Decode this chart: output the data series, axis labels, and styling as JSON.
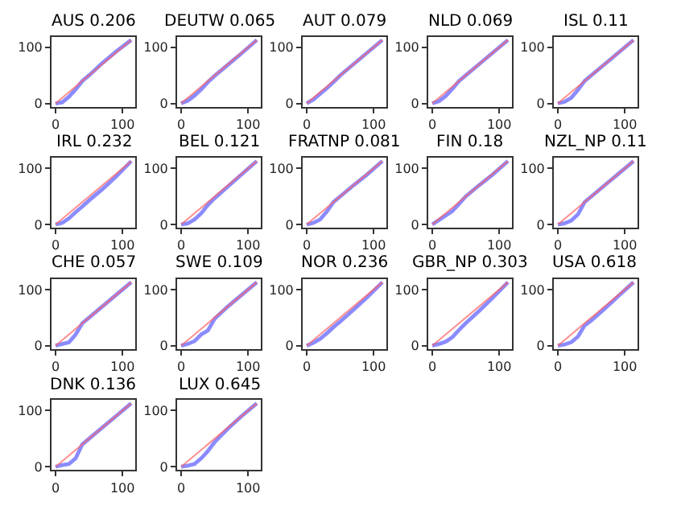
{
  "chart_data": [
    {
      "type": "line",
      "title": "AUS 0.206",
      "xlim": [
        -6,
        119
      ],
      "ylim": [
        -6,
        119
      ],
      "xticks": [
        0,
        100
      ],
      "yticks": [
        0,
        100
      ],
      "series": [
        {
          "color": "#5a5aff",
          "x": [
            0,
            10,
            20,
            30,
            40,
            50,
            70,
            90,
            113
          ],
          "values": [
            0,
            2,
            12,
            25,
            40,
            50,
            72,
            92,
            113
          ]
        },
        {
          "color": "#ff6060",
          "x": [
            0,
            113
          ],
          "values": [
            0,
            113
          ]
        }
      ]
    },
    {
      "type": "line",
      "title": "DEUTW 0.065",
      "xlim": [
        -6,
        119
      ],
      "ylim": [
        -6,
        119
      ],
      "xticks": [
        0,
        100
      ],
      "yticks": [
        0,
        100
      ],
      "series": [
        {
          "color": "#5a5aff",
          "x": [
            0,
            10,
            20,
            30,
            40,
            50,
            70,
            90,
            113
          ],
          "values": [
            0,
            5,
            14,
            25,
            38,
            49,
            69,
            89,
            113
          ]
        },
        {
          "color": "#ff6060",
          "x": [
            0,
            113
          ],
          "values": [
            0,
            113
          ]
        }
      ]
    },
    {
      "type": "line",
      "title": "AUT 0.079",
      "xlim": [
        -6,
        119
      ],
      "ylim": [
        -6,
        119
      ],
      "xticks": [
        0,
        100
      ],
      "yticks": [
        0,
        100
      ],
      "series": [
        {
          "color": "#5a5aff",
          "x": [
            0,
            10,
            20,
            30,
            40,
            50,
            70,
            90,
            113
          ],
          "values": [
            0,
            7,
            17,
            27,
            38,
            50,
            70,
            90,
            113
          ]
        },
        {
          "color": "#ff6060",
          "x": [
            0,
            113
          ],
          "values": [
            0,
            113
          ]
        }
      ]
    },
    {
      "type": "line",
      "title": "NLD 0.069",
      "xlim": [
        -6,
        119
      ],
      "ylim": [
        -6,
        119
      ],
      "xticks": [
        0,
        100
      ],
      "yticks": [
        0,
        100
      ],
      "series": [
        {
          "color": "#5a5aff",
          "x": [
            0,
            10,
            20,
            30,
            40,
            50,
            70,
            90,
            113
          ],
          "values": [
            0,
            4,
            13,
            26,
            40,
            50,
            70,
            90,
            113
          ]
        },
        {
          "color": "#ff6060",
          "x": [
            0,
            113
          ],
          "values": [
            0,
            113
          ]
        }
      ]
    },
    {
      "type": "line",
      "title": "ISL 0.11",
      "xlim": [
        -6,
        119
      ],
      "ylim": [
        -6,
        119
      ],
      "xticks": [
        0,
        100
      ],
      "yticks": [
        0,
        100
      ],
      "series": [
        {
          "color": "#5a5aff",
          "x": [
            0,
            10,
            20,
            30,
            40,
            50,
            70,
            90,
            113
          ],
          "values": [
            0,
            3,
            10,
            24,
            40,
            50,
            70,
            90,
            113
          ]
        },
        {
          "color": "#ff6060",
          "x": [
            0,
            113
          ],
          "values": [
            0,
            113
          ]
        }
      ]
    },
    {
      "type": "line",
      "title": "IRL 0.232",
      "xlim": [
        -6,
        119
      ],
      "ylim": [
        -6,
        119
      ],
      "xticks": [
        0,
        100
      ],
      "yticks": [
        0,
        100
      ],
      "series": [
        {
          "color": "#5a5aff",
          "x": [
            0,
            10,
            20,
            30,
            40,
            50,
            70,
            90,
            113
          ],
          "values": [
            0,
            3,
            11,
            22,
            32,
            43,
            63,
            85,
            113
          ]
        },
        {
          "color": "#ff6060",
          "x": [
            0,
            113
          ],
          "values": [
            0,
            113
          ]
        }
      ]
    },
    {
      "type": "line",
      "title": "BEL 0.121",
      "xlim": [
        -6,
        119
      ],
      "ylim": [
        -6,
        119
      ],
      "xticks": [
        0,
        100
      ],
      "yticks": [
        0,
        100
      ],
      "series": [
        {
          "color": "#5a5aff",
          "x": [
            0,
            10,
            20,
            30,
            40,
            50,
            70,
            90,
            113
          ],
          "values": [
            0,
            2,
            9,
            20,
            35,
            47,
            68,
            89,
            113
          ]
        },
        {
          "color": "#ff6060",
          "x": [
            0,
            113
          ],
          "values": [
            0,
            113
          ]
        }
      ]
    },
    {
      "type": "line",
      "title": "FRATNP 0.081",
      "xlim": [
        -6,
        119
      ],
      "ylim": [
        -6,
        119
      ],
      "xticks": [
        0,
        100
      ],
      "yticks": [
        0,
        100
      ],
      "series": [
        {
          "color": "#5a5aff",
          "x": [
            0,
            10,
            20,
            30,
            40,
            50,
            70,
            90,
            113
          ],
          "values": [
            0,
            3,
            9,
            23,
            40,
            50,
            70,
            89,
            113
          ]
        },
        {
          "color": "#ff6060",
          "x": [
            0,
            113
          ],
          "values": [
            0,
            113
          ]
        }
      ]
    },
    {
      "type": "line",
      "title": "FIN 0.18",
      "xlim": [
        -6,
        119
      ],
      "ylim": [
        -6,
        119
      ],
      "xticks": [
        0,
        100
      ],
      "yticks": [
        0,
        100
      ],
      "series": [
        {
          "color": "#5a5aff",
          "x": [
            0,
            10,
            20,
            30,
            40,
            50,
            70,
            90,
            113
          ],
          "values": [
            0,
            8,
            16,
            24,
            37,
            50,
            70,
            89,
            113
          ]
        },
        {
          "color": "#ff6060",
          "x": [
            0,
            113
          ],
          "values": [
            0,
            113
          ]
        }
      ]
    },
    {
      "type": "line",
      "title": "NZL_NP 0.11",
      "xlim": [
        -6,
        119
      ],
      "ylim": [
        -6,
        119
      ],
      "xticks": [
        0,
        100
      ],
      "yticks": [
        0,
        100
      ],
      "series": [
        {
          "color": "#5a5aff",
          "x": [
            0,
            10,
            20,
            30,
            40,
            50,
            70,
            90,
            113
          ],
          "values": [
            0,
            2,
            7,
            18,
            40,
            50,
            70,
            90,
            113
          ]
        },
        {
          "color": "#ff6060",
          "x": [
            0,
            113
          ],
          "values": [
            0,
            113
          ]
        }
      ]
    },
    {
      "type": "line",
      "title": "CHE 0.057",
      "xlim": [
        -6,
        119
      ],
      "ylim": [
        -6,
        119
      ],
      "xticks": [
        0,
        100
      ],
      "yticks": [
        0,
        100
      ],
      "series": [
        {
          "color": "#5a5aff",
          "x": [
            0,
            10,
            20,
            30,
            40,
            50,
            70,
            90,
            113
          ],
          "values": [
            0,
            3,
            6,
            20,
            40,
            50,
            70,
            90,
            113
          ]
        },
        {
          "color": "#ff6060",
          "x": [
            0,
            113
          ],
          "values": [
            0,
            113
          ]
        }
      ]
    },
    {
      "type": "line",
      "title": "SWE 0.109",
      "xlim": [
        -6,
        119
      ],
      "ylim": [
        -6,
        119
      ],
      "xticks": [
        0,
        100
      ],
      "yticks": [
        0,
        100
      ],
      "series": [
        {
          "color": "#5a5aff",
          "x": [
            0,
            10,
            20,
            30,
            40,
            50,
            70,
            90,
            113
          ],
          "values": [
            0,
            3,
            8,
            20,
            27,
            48,
            70,
            90,
            113
          ]
        },
        {
          "color": "#ff6060",
          "x": [
            0,
            113
          ],
          "values": [
            0,
            113
          ]
        }
      ]
    },
    {
      "type": "line",
      "title": "NOR 0.236",
      "xlim": [
        -6,
        119
      ],
      "ylim": [
        -6,
        119
      ],
      "xticks": [
        0,
        100
      ],
      "yticks": [
        0,
        100
      ],
      "series": [
        {
          "color": "#5a5aff",
          "x": [
            0,
            10,
            20,
            30,
            40,
            50,
            70,
            90,
            113
          ],
          "values": [
            0,
            5,
            12,
            22,
            33,
            43,
            64,
            86,
            113
          ]
        },
        {
          "color": "#ff6060",
          "x": [
            0,
            113
          ],
          "values": [
            0,
            113
          ]
        }
      ]
    },
    {
      "type": "line",
      "title": "GBR_NP 0.303",
      "xlim": [
        -6,
        119
      ],
      "ylim": [
        -6,
        119
      ],
      "xticks": [
        0,
        100
      ],
      "yticks": [
        0,
        100
      ],
      "series": [
        {
          "color": "#5a5aff",
          "x": [
            0,
            10,
            20,
            30,
            40,
            50,
            70,
            90,
            113
          ],
          "values": [
            0,
            3,
            7,
            15,
            28,
            40,
            62,
            85,
            113
          ]
        },
        {
          "color": "#ff6060",
          "x": [
            0,
            113
          ],
          "values": [
            0,
            113
          ]
        }
      ]
    },
    {
      "type": "line",
      "title": "USA 0.618",
      "xlim": [
        -6,
        119
      ],
      "ylim": [
        -6,
        119
      ],
      "xticks": [
        0,
        100
      ],
      "yticks": [
        0,
        100
      ],
      "series": [
        {
          "color": "#5a5aff",
          "x": [
            0,
            10,
            20,
            30,
            40,
            50,
            70,
            90,
            113
          ],
          "values": [
            0,
            2,
            6,
            16,
            36,
            45,
            66,
            88,
            113
          ]
        },
        {
          "color": "#ff6060",
          "x": [
            0,
            113
          ],
          "values": [
            0,
            113
          ]
        }
      ]
    },
    {
      "type": "line",
      "title": "DNK 0.136",
      "xlim": [
        -6,
        119
      ],
      "ylim": [
        -6,
        119
      ],
      "xticks": [
        0,
        100
      ],
      "yticks": [
        0,
        100
      ],
      "series": [
        {
          "color": "#5a5aff",
          "x": [
            0,
            10,
            20,
            30,
            40,
            50,
            70,
            90,
            113
          ],
          "values": [
            0,
            3,
            5,
            15,
            40,
            50,
            70,
            90,
            113
          ]
        },
        {
          "color": "#ff6060",
          "x": [
            0,
            113
          ],
          "values": [
            0,
            113
          ]
        }
      ]
    },
    {
      "type": "line",
      "title": "LUX 0.645",
      "xlim": [
        -6,
        119
      ],
      "ylim": [
        -6,
        119
      ],
      "xticks": [
        0,
        100
      ],
      "yticks": [
        0,
        100
      ],
      "series": [
        {
          "color": "#5a5aff",
          "x": [
            0,
            10,
            20,
            30,
            40,
            50,
            70,
            90,
            113
          ],
          "values": [
            0,
            2,
            5,
            15,
            28,
            44,
            68,
            90,
            113
          ]
        },
        {
          "color": "#ff6060",
          "x": [
            0,
            113
          ],
          "values": [
            0,
            113
          ]
        }
      ]
    }
  ]
}
